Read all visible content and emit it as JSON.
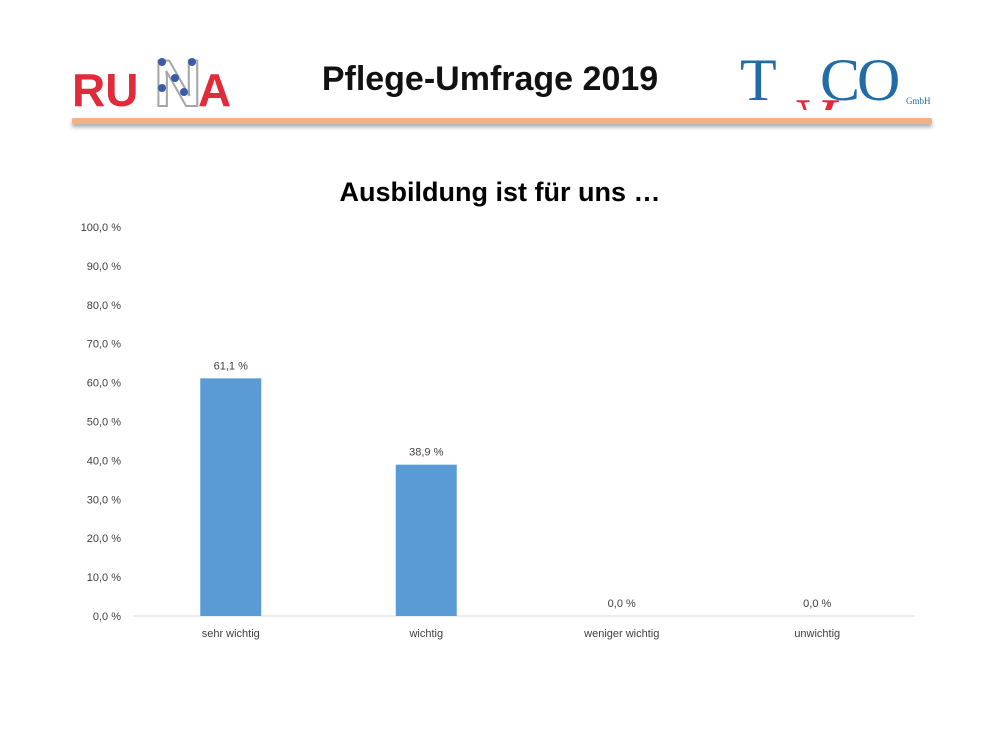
{
  "header": {
    "title": "Pflege-Umfrage 2019",
    "logo_left": "RUNA",
    "logo_right": "TACO",
    "logo_right_suffix": "GmbH"
  },
  "colors": {
    "bar": "#5b9bd5",
    "header_rule": "#f4b183",
    "logo_red": "#e02b3a",
    "logo_blue": "#1f6ca6"
  },
  "chart_data": {
    "type": "bar",
    "title": "Ausbildung ist für uns …",
    "categories": [
      "sehr wichtig",
      "wichtig",
      "weniger wichtig",
      "unwichtig"
    ],
    "values": [
      61.1,
      38.9,
      0.0,
      0.0
    ],
    "value_labels": [
      "61,1 %",
      "38,9 %",
      "0,0 %",
      "0,0 %"
    ],
    "ylim": [
      0,
      100
    ],
    "ytick_labels": [
      "0,0 %",
      "10,0 %",
      "20,0 %",
      "30,0 %",
      "40,0 %",
      "50,0 %",
      "60,0 %",
      "70,0 %",
      "80,0 %",
      "90,0 %",
      "100,0 %"
    ],
    "grid": false,
    "legend": "none"
  }
}
